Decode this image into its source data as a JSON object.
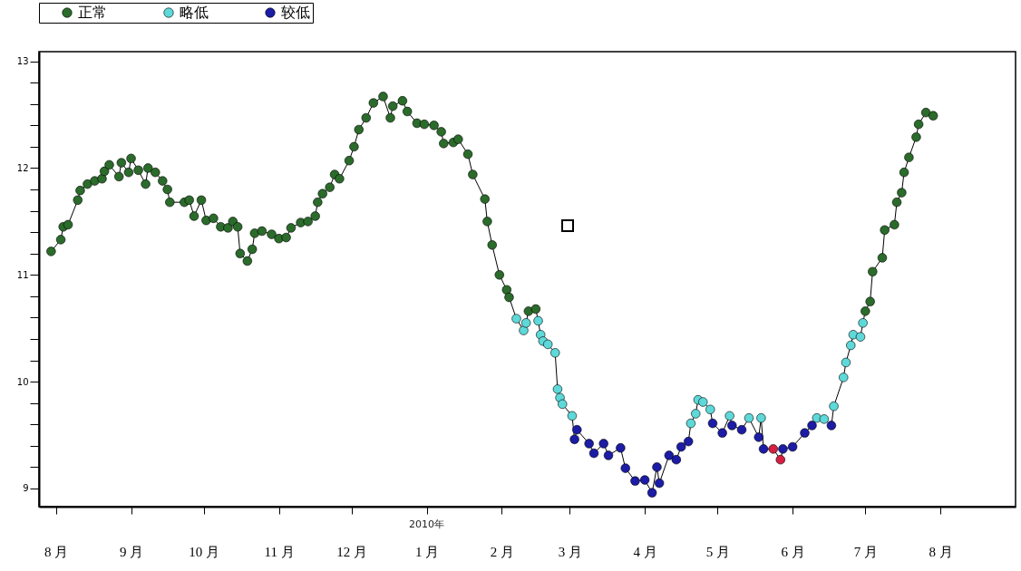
{
  "chart_data": {
    "type": "scatter",
    "legend": "top left",
    "xlim": [
      "2009-07-25",
      "2010-09-01"
    ],
    "xticks": [
      {
        "value": "2009-08-01",
        "label": "8 月"
      },
      {
        "value": "2009-09-01",
        "label": "9 月"
      },
      {
        "value": "2009-10-01",
        "label": "10 月"
      },
      {
        "value": "2009-11-01",
        "label": "11 月"
      },
      {
        "value": "2009-12-01",
        "label": "12 月"
      },
      {
        "value": "2010-01-01",
        "label": "1 月"
      },
      {
        "value": "2010-02-01",
        "label": "2 月"
      },
      {
        "value": "2010-03-01",
        "label": "3 月"
      },
      {
        "value": "2010-04-01",
        "label": "4 月"
      },
      {
        "value": "2010-05-01",
        "label": "5 月"
      },
      {
        "value": "2010-06-01",
        "label": "6 月"
      },
      {
        "value": "2010-07-01",
        "label": "7 月"
      },
      {
        "value": "2010-08-01",
        "label": "8 月"
      }
    ],
    "ylim": [
      8.83,
      13.09
    ],
    "yticks": [
      9,
      {
        "value": 9.2,
        "label": null
      },
      {
        "value": 9.4,
        "label": null
      },
      {
        "value": 9.6,
        "label": null
      },
      {
        "value": 9.8,
        "label": null
      },
      10,
      {
        "value": 10.2,
        "label": null
      },
      {
        "value": 10.4,
        "label": null
      },
      {
        "value": 10.6,
        "label": null
      },
      {
        "value": 10.8,
        "label": null
      },
      11,
      {
        "value": 11.2,
        "label": null
      },
      {
        "value": 11.4,
        "label": null
      },
      {
        "value": 11.6,
        "label": null
      },
      {
        "value": 11.8,
        "label": null
      },
      12,
      {
        "value": 12.2,
        "label": null
      },
      {
        "value": 12.4,
        "label": null
      },
      {
        "value": 12.6,
        "label": null
      },
      {
        "value": 12.8,
        "label": null
      },
      13
    ],
    "annotations": [
      "2010年"
    ],
    "series": [
      {
        "type": "line",
        "color": "#000000",
        "marker": "none",
        "line_style": "solid",
        "x": [
          "2009-07-30",
          "2009-08-03",
          "2009-08-04",
          "2009-08-06",
          "2009-08-10",
          "2009-08-11",
          "2009-08-14",
          "2009-08-17",
          "2009-08-20",
          "2009-08-21",
          "2009-08-23",
          "2009-08-27",
          "2009-08-28",
          "2009-08-31",
          "2009-09-01",
          "2009-09-04",
          "2009-09-07",
          "2009-09-08",
          "2009-09-11",
          "2009-09-14",
          "2009-09-16",
          "2009-09-17",
          "2009-09-23",
          "2009-09-25",
          "2009-09-27",
          "2009-09-30",
          "2009-10-02",
          "2009-10-05",
          "2009-10-08",
          "2009-10-11",
          "2009-10-13",
          "2009-10-15",
          "2009-10-16",
          "2009-10-19",
          "2009-10-21",
          "2009-10-22",
          "2009-10-25",
          "2009-10-29",
          "2009-11-01",
          "2009-11-04",
          "2009-11-06",
          "2009-11-10",
          "2009-11-13",
          "2009-11-16",
          "2009-11-17",
          "2009-11-19",
          "2009-11-22",
          "2009-11-24",
          "2009-11-26",
          "2009-11-30",
          "2009-12-02",
          "2009-12-04",
          "2009-12-07",
          "2009-12-10",
          "2009-12-14",
          "2009-12-17",
          "2009-12-18",
          "2009-12-22",
          "2009-12-24",
          "2009-12-28",
          "2009-12-31",
          "2010-01-04",
          "2010-01-07",
          "2010-01-08",
          "2010-01-12",
          "2010-01-14",
          "2010-01-18",
          "2010-01-20",
          "2010-01-25",
          "2010-01-26",
          "2010-01-28",
          "2010-01-31",
          "2010-02-03",
          "2010-02-04",
          "2010-02-07",
          "2010-02-10",
          "2010-02-11",
          "2010-02-12",
          "2010-02-15",
          "2010-02-16",
          "2010-02-17",
          "2010-02-18",
          "2010-02-20",
          "2010-02-23",
          "2010-02-24",
          "2010-02-25",
          "2010-02-26",
          "2010-03-02",
          "2010-03-03",
          "2010-03-04",
          "2010-03-09",
          "2010-03-11",
          "2010-03-15",
          "2010-03-17",
          "2010-03-22",
          "2010-03-24",
          "2010-03-28",
          "2010-04-01",
          "2010-04-04",
          "2010-04-06",
          "2010-04-07",
          "2010-04-11",
          "2010-04-14",
          "2010-04-16",
          "2010-04-19",
          "2010-04-20",
          "2010-04-22",
          "2010-04-23",
          "2010-04-25",
          "2010-04-28",
          "2010-04-29",
          "2010-05-03",
          "2010-05-06",
          "2010-05-07",
          "2010-05-11",
          "2010-05-14",
          "2010-05-18",
          "2010-05-19",
          "2010-05-20",
          "2010-05-24",
          "2010-05-27",
          "2010-05-28",
          "2010-06-01",
          "2010-06-06",
          "2010-06-09",
          "2010-06-11",
          "2010-06-14",
          "2010-06-17",
          "2010-06-18",
          "2010-06-22",
          "2010-06-23",
          "2010-06-25",
          "2010-06-26",
          "2010-06-29",
          "2010-06-30",
          "2010-07-01",
          "2010-07-03",
          "2010-07-04",
          "2010-07-08",
          "2010-07-09",
          "2010-07-13",
          "2010-07-14",
          "2010-07-16",
          "2010-07-17",
          "2010-07-19",
          "2010-07-22",
          "2010-07-23",
          "2010-07-26",
          "2010-07-29"
        ],
        "values": [
          11.22,
          11.33,
          11.45,
          11.47,
          11.7,
          11.79,
          11.85,
          11.88,
          11.9,
          11.97,
          12.03,
          11.92,
          12.05,
          11.96,
          12.09,
          11.98,
          11.85,
          12.0,
          11.96,
          11.88,
          11.8,
          11.68,
          11.68,
          11.7,
          11.55,
          11.7,
          11.51,
          11.53,
          11.45,
          11.44,
          11.5,
          11.45,
          11.2,
          11.13,
          11.24,
          11.39,
          11.41,
          11.38,
          11.34,
          11.35,
          11.44,
          11.49,
          11.5,
          11.55,
          11.68,
          11.76,
          11.82,
          11.94,
          11.9,
          12.07,
          12.2,
          12.36,
          12.47,
          12.61,
          12.67,
          12.47,
          12.58,
          12.63,
          12.53,
          12.42,
          12.41,
          12.4,
          12.34,
          12.23,
          12.24,
          12.27,
          12.13,
          11.94,
          11.71,
          11.5,
          11.28,
          11.0,
          10.86,
          10.79,
          10.59,
          10.48,
          10.55,
          10.66,
          10.68,
          10.57,
          10.44,
          10.38,
          10.35,
          10.27,
          9.93,
          9.85,
          9.79,
          9.68,
          9.46,
          9.55,
          9.42,
          9.33,
          9.42,
          9.31,
          9.38,
          9.19,
          9.07,
          9.08,
          8.96,
          9.2,
          9.05,
          9.31,
          9.27,
          9.39,
          9.44,
          9.61,
          9.7,
          9.83,
          9.81,
          9.74,
          9.61,
          9.52,
          9.68,
          9.59,
          9.55,
          9.66,
          9.48,
          9.66,
          9.37,
          9.37,
          9.27,
          9.37,
          9.39,
          9.52,
          9.59,
          9.66,
          9.65,
          9.59,
          9.77,
          10.04,
          10.18,
          10.34,
          10.44,
          10.42,
          10.55,
          10.66,
          10.75,
          11.03,
          11.16,
          11.42,
          11.47,
          11.68,
          11.77,
          11.96,
          12.1,
          12.29,
          12.41,
          12.52,
          12.49
        ]
      },
      {
        "type": "scatter",
        "name": "正常",
        "color": "#2b6b2b",
        "marker": "circle",
        "x": [
          "2009-07-30",
          "2009-08-03",
          "2009-08-04",
          "2009-08-06",
          "2009-08-10",
          "2009-08-11",
          "2009-08-14",
          "2009-08-17",
          "2009-08-20",
          "2009-08-21",
          "2009-08-23",
          "2009-08-27",
          "2009-08-28",
          "2009-08-31",
          "2009-09-01",
          "2009-09-04",
          "2009-09-07",
          "2009-09-08",
          "2009-09-11",
          "2009-09-14",
          "2009-09-16",
          "2009-09-17",
          "2009-09-23",
          "2009-09-25",
          "2009-09-27",
          "2009-09-30",
          "2009-10-02",
          "2009-10-05",
          "2009-10-08",
          "2009-10-11",
          "2009-10-13",
          "2009-10-15",
          "2009-10-16",
          "2009-10-19",
          "2009-10-21",
          "2009-10-22",
          "2009-10-25",
          "2009-10-29",
          "2009-11-01",
          "2009-11-04",
          "2009-11-06",
          "2009-11-10",
          "2009-11-13",
          "2009-11-16",
          "2009-11-17",
          "2009-11-19",
          "2009-11-22",
          "2009-11-24",
          "2009-11-26",
          "2009-11-30",
          "2009-12-02",
          "2009-12-04",
          "2009-12-07",
          "2009-12-10",
          "2009-12-14",
          "2009-12-17",
          "2009-12-18",
          "2009-12-22",
          "2009-12-24",
          "2009-12-28",
          "2009-12-31",
          "2010-01-04",
          "2010-01-07",
          "2010-01-08",
          "2010-01-12",
          "2010-01-14",
          "2010-01-18",
          "2010-01-20",
          "2010-01-25",
          "2010-01-26",
          "2010-01-28",
          "2010-01-31",
          "2010-02-03",
          "2010-02-04",
          "2010-02-12",
          "2010-02-15",
          "2010-07-01",
          "2010-07-03",
          "2010-07-04",
          "2010-07-08",
          "2010-07-09",
          "2010-07-13",
          "2010-07-14",
          "2010-07-16",
          "2010-07-17",
          "2010-07-19",
          "2010-07-22",
          "2010-07-23",
          "2010-07-26",
          "2010-07-29"
        ],
        "values": [
          11.22,
          11.33,
          11.45,
          11.47,
          11.7,
          11.79,
          11.85,
          11.88,
          11.9,
          11.97,
          12.03,
          11.92,
          12.05,
          11.96,
          12.09,
          11.98,
          11.85,
          12.0,
          11.96,
          11.88,
          11.8,
          11.68,
          11.68,
          11.7,
          11.55,
          11.7,
          11.51,
          11.53,
          11.45,
          11.44,
          11.5,
          11.45,
          11.2,
          11.13,
          11.24,
          11.39,
          11.41,
          11.38,
          11.34,
          11.35,
          11.44,
          11.49,
          11.5,
          11.55,
          11.68,
          11.76,
          11.82,
          11.94,
          11.9,
          12.07,
          12.2,
          12.36,
          12.47,
          12.61,
          12.67,
          12.47,
          12.58,
          12.63,
          12.53,
          12.42,
          12.41,
          12.4,
          12.34,
          12.23,
          12.24,
          12.27,
          12.13,
          11.94,
          11.71,
          11.5,
          11.28,
          11.0,
          10.86,
          10.79,
          10.66,
          10.68,
          10.66,
          10.75,
          11.03,
          11.16,
          11.42,
          11.47,
          11.68,
          11.77,
          11.96,
          12.1,
          12.29,
          12.41,
          12.52,
          12.49
        ]
      },
      {
        "type": "scatter",
        "name": "略低",
        "color": "#5ed8d8",
        "marker": "circle",
        "x": [
          "2010-02-07",
          "2010-02-10",
          "2010-02-11",
          "2010-02-16",
          "2010-02-17",
          "2010-02-18",
          "2010-02-20",
          "2010-02-23",
          "2010-02-24",
          "2010-02-25",
          "2010-02-26",
          "2010-03-02",
          "2010-04-20",
          "2010-04-22",
          "2010-04-23",
          "2010-04-25",
          "2010-04-28",
          "2010-05-06",
          "2010-05-14",
          "2010-05-19",
          "2010-06-11",
          "2010-06-14",
          "2010-06-18",
          "2010-06-22",
          "2010-06-23",
          "2010-06-25",
          "2010-06-26",
          "2010-06-29",
          "2010-06-30"
        ],
        "values": [
          10.59,
          10.48,
          10.55,
          10.57,
          10.44,
          10.38,
          10.35,
          10.27,
          9.93,
          9.85,
          9.79,
          9.68,
          9.61,
          9.7,
          9.83,
          9.81,
          9.74,
          9.68,
          9.66,
          9.66,
          9.66,
          9.65,
          9.77,
          10.04,
          10.18,
          10.34,
          10.44,
          10.42,
          10.55
        ]
      },
      {
        "type": "scatter",
        "name": "较低",
        "color": "#1c1ca6",
        "marker": "circle",
        "x": [
          "2010-03-03",
          "2010-03-04",
          "2010-03-09",
          "2010-03-11",
          "2010-03-15",
          "2010-03-17",
          "2010-03-22",
          "2010-03-24",
          "2010-03-28",
          "2010-04-01",
          "2010-04-04",
          "2010-04-06",
          "2010-04-07",
          "2010-04-11",
          "2010-04-14",
          "2010-04-16",
          "2010-04-19",
          "2010-04-29",
          "2010-05-03",
          "2010-05-07",
          "2010-05-11",
          "2010-05-18",
          "2010-05-20",
          "2010-05-28",
          "2010-06-01",
          "2010-06-06",
          "2010-06-09",
          "2010-06-17"
        ],
        "values": [
          9.46,
          9.55,
          9.42,
          9.33,
          9.42,
          9.31,
          9.38,
          9.19,
          9.07,
          9.08,
          8.96,
          9.2,
          9.05,
          9.31,
          9.27,
          9.39,
          9.44,
          9.61,
          9.52,
          9.59,
          9.55,
          9.48,
          9.37,
          9.37,
          9.39,
          9.52,
          9.59,
          9.59
        ]
      },
      {
        "type": "scatter",
        "color": "#d42040",
        "marker": "circle",
        "x": [
          "2010-05-24",
          "2010-05-27"
        ],
        "values": [
          9.37,
          9.27
        ]
      }
    ]
  }
}
